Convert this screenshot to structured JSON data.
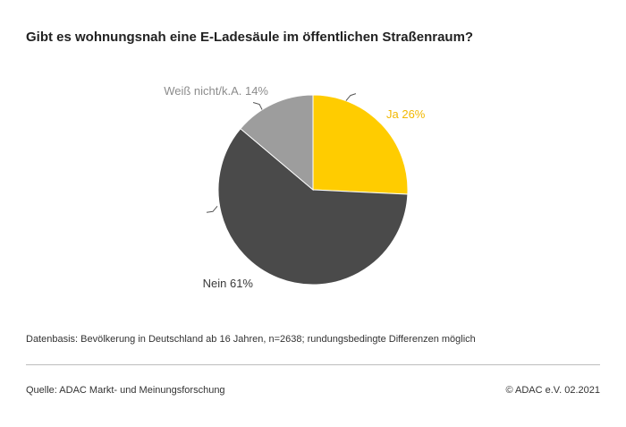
{
  "chart_data": {
    "type": "pie",
    "title": "Gibt es wohnungsnah eine E-Ladesäule im öffentlichen Straßenraum?",
    "slices": [
      {
        "label": "Ja 26%",
        "value": 26,
        "color": "#ffcc00",
        "label_color": "#f2b800"
      },
      {
        "label": "Nein 61%",
        "value": 61,
        "color": "#4a4a4a",
        "label_color": "#3a3a3a"
      },
      {
        "label": "Weiß nicht/k.A. 14%",
        "value": 14,
        "color": "#9d9d9d",
        "label_color": "#8c8c8c"
      }
    ],
    "start": "12 o'clock",
    "direction": "clockwise"
  },
  "footer": {
    "note": "Datenbasis: Bevölkerung in Deutschland ab 16 Jahren, n=2638; rundungsbedingte Differenzen möglich",
    "source": "Quelle: ADAC Markt- und Meinungsforschung",
    "copyright": "© ADAC e.V. 02.2021"
  }
}
